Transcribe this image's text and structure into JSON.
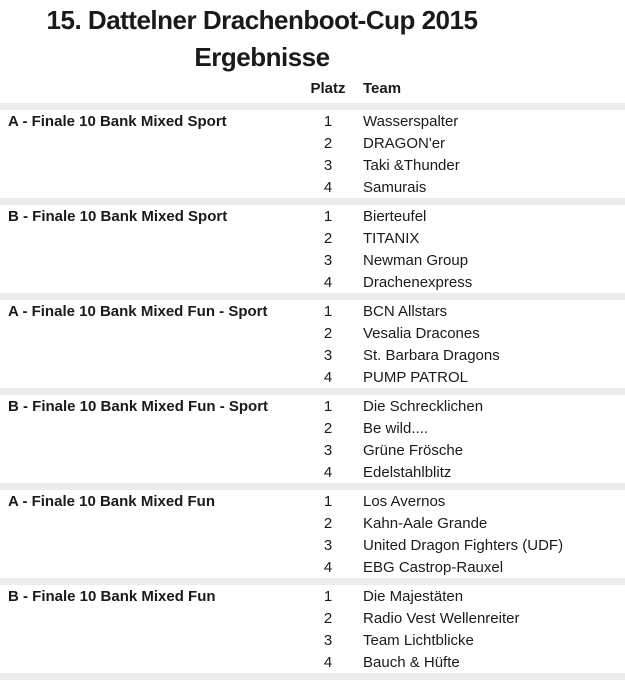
{
  "page": {
    "title": "15. Dattelner Drachenboot-Cup 2015",
    "subtitle": "Ergebnisse"
  },
  "table": {
    "columns": {
      "platz": "Platz",
      "team": "Team"
    },
    "sections": [
      {
        "label": "A - Finale 10 Bank Mixed Sport",
        "rows": [
          {
            "platz": "1",
            "team": "Wasserspalter"
          },
          {
            "platz": "2",
            "team": "DRAGON'er"
          },
          {
            "platz": "3",
            "team": "Taki &Thunder"
          },
          {
            "platz": "4",
            "team": "Samurais"
          }
        ]
      },
      {
        "label": "B - Finale 10 Bank Mixed Sport",
        "rows": [
          {
            "platz": "1",
            "team": "Bierteufel"
          },
          {
            "platz": "2",
            "team": "TITANIX"
          },
          {
            "platz": "3",
            "team": "Newman Group"
          },
          {
            "platz": "4",
            "team": "Drachenexpress"
          }
        ]
      },
      {
        "label": "A - Finale 10 Bank Mixed Fun - Sport",
        "rows": [
          {
            "platz": "1",
            "team": "BCN Allstars"
          },
          {
            "platz": "2",
            "team": "Vesalia Dracones"
          },
          {
            "platz": "3",
            "team": "St. Barbara Dragons"
          },
          {
            "platz": "4",
            "team": "PUMP PATROL"
          }
        ]
      },
      {
        "label": "B - Finale 10 Bank Mixed Fun - Sport",
        "rows": [
          {
            "platz": "1",
            "team": "Die Schrecklichen"
          },
          {
            "platz": "2",
            "team": "Be wild...."
          },
          {
            "platz": "3",
            "team": "Grüne Frösche"
          },
          {
            "platz": "4",
            "team": "Edelstahlblitz"
          }
        ]
      },
      {
        "label": "A - Finale 10 Bank Mixed Fun",
        "rows": [
          {
            "platz": "1",
            "team": "Los Avernos"
          },
          {
            "platz": "2",
            "team": "Kahn-Aale Grande"
          },
          {
            "platz": "3",
            "team": "United Dragon Fighters (UDF)"
          },
          {
            "platz": "4",
            "team": "EBG Castrop-Rauxel"
          }
        ]
      },
      {
        "label": "B - Finale 10 Bank Mixed Fun",
        "rows": [
          {
            "platz": "1",
            "team": "Die Majestäten"
          },
          {
            "platz": "2",
            "team": "Radio Vest Wellenreiter"
          },
          {
            "platz": "3",
            "team": "Team Lichtblicke"
          },
          {
            "platz": "4",
            "team": "Bauch & Hüfte"
          }
        ]
      }
    ]
  },
  "colors": {
    "stripe": "#edecec",
    "text": "#1a1a1a",
    "background": "#ffffff"
  }
}
